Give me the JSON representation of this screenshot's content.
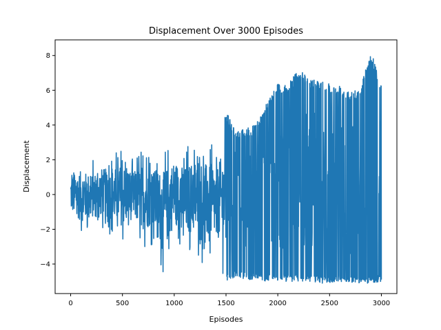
{
  "chart_data": {
    "type": "line",
    "title": "Displacement Over 3000 Episodes",
    "xlabel": "Episodes",
    "ylabel": "Displacement",
    "xlim": [
      -150,
      3150
    ],
    "ylim": [
      -5.7,
      8.9
    ],
    "xticks": [
      0,
      500,
      1000,
      1500,
      2000,
      2500,
      3000
    ],
    "yticks": [
      -4,
      -2,
      0,
      2,
      4,
      6,
      8
    ],
    "grid": false,
    "color": "#1f77b4",
    "series": [
      {
        "x": [
          0,
          100,
          200,
          300,
          400,
          500,
          600,
          700,
          800,
          900,
          1000,
          1100,
          1200,
          1300,
          1400,
          1500,
          1600,
          1700,
          1800,
          1900,
          2000,
          2100,
          2200,
          2300,
          2400,
          2500,
          2600,
          2700,
          2800,
          2900,
          3000
        ],
        "max": [
          1.8,
          2.3,
          2.0,
          2.4,
          2.4,
          2.9,
          2.2,
          2.9,
          2.6,
          2.8,
          3.2,
          2.8,
          3.4,
          3.3,
          2.6,
          4.8,
          3.6,
          3.8,
          4.2,
          5.4,
          6.4,
          6.3,
          7.3,
          6.6,
          6.7,
          6.4,
          6.3,
          6.0,
          6.2,
          8.3,
          6.3
        ],
        "min": [
          -1.7,
          -2.5,
          -2.2,
          -2.1,
          -2.4,
          -3.0,
          -2.3,
          -3.2,
          -2.9,
          -4.7,
          -3.0,
          -3.5,
          -3.6,
          -4.2,
          -3.6,
          -5.0,
          -4.7,
          -4.9,
          -4.9,
          -5.0,
          -5.0,
          -5.0,
          -5.0,
          -5.0,
          -5.1,
          -5.1,
          -5.0,
          -5.1,
          -5.1,
          -5.1,
          -5.0
        ]
      }
    ]
  }
}
